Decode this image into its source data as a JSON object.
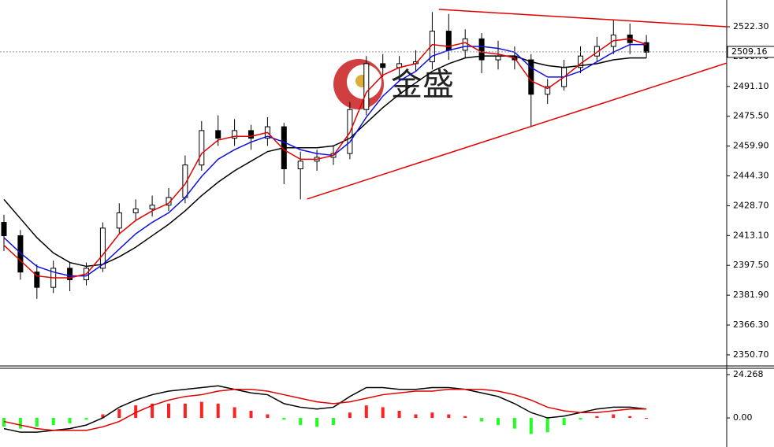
{
  "chart_data": [
    {
      "type": "candlestick",
      "watermark": "金盛",
      "open": [
        2420,
        2413,
        2394,
        2386,
        2396,
        2390,
        2396,
        2417,
        2425,
        2427,
        2429,
        2433,
        2450,
        2468,
        2464,
        2468,
        2464,
        2470,
        2448,
        2452,
        2454,
        2456,
        2479,
        2503,
        2501,
        2503,
        2504,
        2520,
        2510,
        2516,
        2505,
        2507,
        2505,
        2487,
        2491,
        2501,
        2507,
        2512,
        2518,
        2514
      ],
      "high": [
        2424,
        2416,
        2398,
        2400,
        2399,
        2399,
        2420,
        2430,
        2432,
        2434,
        2438,
        2455,
        2473,
        2476,
        2474,
        2471,
        2475,
        2472,
        2457,
        2458,
        2460,
        2483,
        2507,
        2508,
        2507,
        2510,
        2530,
        2529,
        2521,
        2519,
        2515,
        2512,
        2508,
        2495,
        2505,
        2512,
        2517,
        2526,
        2524,
        2518
      ],
      "low": [
        2405,
        2390,
        2380,
        2383,
        2384,
        2387,
        2394,
        2414,
        2421,
        2423,
        2426,
        2430,
        2447,
        2460,
        2460,
        2458,
        2460,
        2440,
        2432,
        2447,
        2450,
        2453,
        2476,
        2496,
        2497,
        2499,
        2500,
        2505,
        2506,
        2498,
        2500,
        2500,
        2470,
        2482,
        2489,
        2498,
        2504,
        2508,
        2508,
        2506
      ],
      "close": [
        2413,
        2394,
        2386,
        2396,
        2390,
        2396,
        2417,
        2425,
        2427,
        2429,
        2433,
        2450,
        2468,
        2464,
        2468,
        2464,
        2470,
        2448,
        2452,
        2454,
        2456,
        2479,
        2503,
        2501,
        2503,
        2504,
        2520,
        2510,
        2516,
        2505,
        2507,
        2505,
        2487,
        2491,
        2501,
        2507,
        2512,
        2518,
        2514,
        2509
      ],
      "bull_color": "#ffffff",
      "bear_color": "#000000",
      "lines": [
        {
          "color": "#000000",
          "values": [
            2432,
            2422,
            2412,
            2404,
            2399,
            2397,
            2398,
            2402,
            2407,
            2413,
            2419,
            2426,
            2434,
            2441,
            2447,
            2452,
            2457,
            2459,
            2459,
            2459,
            2460,
            2464,
            2472,
            2480,
            2487,
            2493,
            2499,
            2503,
            2506,
            2507,
            2507,
            2507,
            2504,
            2502,
            2501,
            2502,
            2503,
            2505,
            2506,
            2506
          ]
        },
        {
          "color": "#1010e0",
          "values": [
            2412,
            2404,
            2397,
            2394,
            2392,
            2392,
            2398,
            2406,
            2414,
            2420,
            2425,
            2433,
            2444,
            2453,
            2458,
            2462,
            2465,
            2462,
            2458,
            2456,
            2455,
            2462,
            2475,
            2486,
            2494,
            2499,
            2507,
            2510,
            2512,
            2512,
            2511,
            2509,
            2501,
            2496,
            2496,
            2499,
            2504,
            2509,
            2513,
            2513
          ]
        },
        {
          "color": "#e00000",
          "values": [
            2408,
            2400,
            2392,
            2391,
            2391,
            2393,
            2403,
            2414,
            2421,
            2426,
            2430,
            2440,
            2456,
            2463,
            2465,
            2465,
            2467,
            2458,
            2453,
            2453,
            2455,
            2467,
            2488,
            2497,
            2501,
            2503,
            2513,
            2512,
            2514,
            2509,
            2508,
            2506,
            2494,
            2490,
            2496,
            2503,
            2509,
            2515,
            2516,
            2513
          ]
        }
      ],
      "trendlines": [
        {
          "color": "#e00000",
          "x": [
            26.4,
            43.9
          ],
          "y": [
            2531.4,
            2522.3
          ]
        },
        {
          "color": "#e00000",
          "x": [
            18.4,
            43.9
          ],
          "y": [
            2432.2,
            2503.4
          ]
        }
      ],
      "current": 2509.16,
      "ylim": [
        2344.9,
        2536.3
      ],
      "yticks": [
        {
          "value": 2522.3,
          "label": "2522.30"
        },
        {
          "value": 2506.7,
          "label": "2506.70"
        },
        {
          "value": 2491.1,
          "label": "2491.10"
        },
        {
          "value": 2475.5,
          "label": "2475.50"
        },
        {
          "value": 2459.9,
          "label": "2459.90"
        },
        {
          "value": 2444.3,
          "label": "2444.30"
        },
        {
          "value": 2428.7,
          "label": "2428.70"
        },
        {
          "value": 2413.1,
          "label": "2413.10"
        },
        {
          "value": 2397.5,
          "label": "2397.50"
        },
        {
          "value": 2381.9,
          "label": "2381.90"
        },
        {
          "value": 2366.3,
          "label": "2366.30"
        },
        {
          "value": 2350.7,
          "label": "2350.70"
        }
      ]
    },
    {
      "type": "macd",
      "histogram": [
        -5,
        -6,
        -5,
        -4,
        -3,
        -1,
        2,
        5,
        7,
        8,
        8,
        8,
        9,
        8,
        6,
        4,
        2,
        -1,
        -4,
        -5,
        -4,
        3,
        7,
        6,
        4,
        2,
        3,
        2,
        1,
        -2,
        -4,
        -6,
        -9,
        -8,
        -4,
        -1,
        1,
        2,
        1,
        0
      ],
      "up_color": "#ff2020",
      "down_color": "#20ff20",
      "lines": [
        {
          "color": "#000000",
          "values": [
            -6,
            -8,
            -8,
            -7,
            -6,
            -4,
            0,
            6,
            10,
            13,
            15,
            16,
            17,
            18,
            16,
            14,
            13,
            8,
            6,
            5,
            6,
            12,
            17,
            17,
            16,
            16,
            17,
            17,
            16,
            14,
            12,
            8,
            3,
            0,
            1,
            3,
            5,
            6,
            6,
            5
          ]
        },
        {
          "color": "#e00000",
          "values": [
            -2,
            -4,
            -6,
            -7,
            -7,
            -7,
            -5,
            -2,
            3,
            7,
            10,
            12,
            13,
            15,
            16,
            16,
            15,
            13,
            11,
            9,
            8,
            9,
            11,
            13,
            14,
            15,
            15,
            16,
            16,
            16,
            15,
            13,
            10,
            6,
            4,
            3,
            3,
            4,
            5,
            5
          ]
        }
      ],
      "ylim": [
        -16.3,
        27.8
      ],
      "yticks": [
        24.268,
        {
          "value": 0,
          "label": "0.00"
        }
      ]
    }
  ]
}
